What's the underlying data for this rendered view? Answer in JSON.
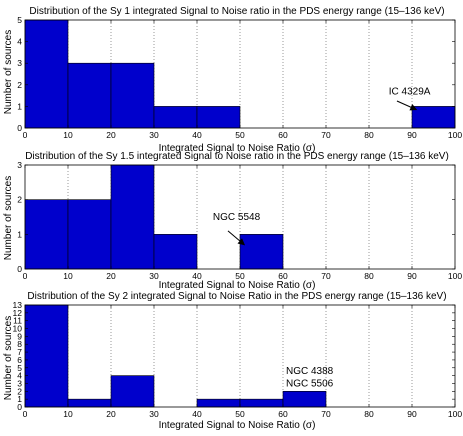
{
  "chart_data": [
    {
      "type": "bar",
      "title": "Distribution of the Sy 1 integrated Signal to Noise ratio in the PDS energy range (15–136 keV)",
      "xlabel": "Integrated Signal to Noise Ratio (σ)",
      "ylabel": "Number of sources",
      "xlim": [
        0,
        100
      ],
      "ylim": [
        0,
        5
      ],
      "xticks": [
        0,
        10,
        20,
        30,
        40,
        50,
        60,
        70,
        80,
        90,
        100
      ],
      "yticks": [
        0,
        1,
        2,
        3,
        4,
        5
      ],
      "grid": "vertical-dotted",
      "bins": [
        [
          0,
          10
        ],
        [
          10,
          20
        ],
        [
          20,
          30
        ],
        [
          30,
          40
        ],
        [
          40,
          50
        ],
        [
          50,
          60
        ],
        [
          60,
          70
        ],
        [
          70,
          80
        ],
        [
          80,
          90
        ],
        [
          90,
          100
        ]
      ],
      "values": [
        5,
        3,
        3,
        1,
        1,
        0,
        0,
        0,
        0,
        1
      ],
      "annotations": [
        {
          "text": "IC 4329A",
          "text_x": 84.6,
          "text_y": 1.55,
          "arrow_from": [
            86.5,
            1.25
          ],
          "arrow_to": [
            91,
            0.85
          ]
        }
      ]
    },
    {
      "type": "bar",
      "title": "Distribution of the Sy 1.5 integrated Signal to Noise ratio in the PDS energy range (15–136 keV)",
      "xlabel": "Integrated Signal to Noise Ratio (σ)",
      "ylabel": "Number of sources",
      "xlim": [
        0,
        100
      ],
      "ylim": [
        0,
        3
      ],
      "xticks": [
        0,
        10,
        20,
        30,
        40,
        50,
        60,
        70,
        80,
        90,
        100
      ],
      "yticks": [
        0,
        1,
        2,
        3
      ],
      "grid": "vertical-dotted",
      "bins": [
        [
          0,
          10
        ],
        [
          10,
          20
        ],
        [
          20,
          30
        ],
        [
          30,
          40
        ],
        [
          40,
          50
        ],
        [
          50,
          60
        ],
        [
          60,
          70
        ],
        [
          70,
          80
        ],
        [
          80,
          90
        ],
        [
          90,
          100
        ]
      ],
      "values": [
        2,
        2,
        3,
        1,
        0,
        1,
        0,
        0,
        0,
        0
      ],
      "annotations": [
        {
          "text": "NGC 5548",
          "text_x": 43.7,
          "text_y": 1.42,
          "arrow_from": [
            47.2,
            1.1
          ],
          "arrow_to": [
            51,
            0.7
          ]
        }
      ]
    },
    {
      "type": "bar",
      "title": "Distribution of the Sy 2 integrated Signal to Noise Ratio in the PDS energy range (15–136 keV)",
      "xlabel": "Integrated Signal to Noise Ratio (σ)",
      "ylabel": "Number of sources",
      "xlim": [
        0,
        100
      ],
      "ylim": [
        0,
        13
      ],
      "xticks": [
        0,
        10,
        20,
        30,
        40,
        50,
        60,
        70,
        80,
        90,
        100
      ],
      "yticks": [
        0,
        1,
        2,
        3,
        4,
        5,
        6,
        7,
        8,
        9,
        10,
        11,
        12,
        13
      ],
      "grid": "vertical-dotted",
      "bins": [
        [
          0,
          10
        ],
        [
          10,
          20
        ],
        [
          20,
          30
        ],
        [
          30,
          40
        ],
        [
          40,
          50
        ],
        [
          50,
          60
        ],
        [
          60,
          70
        ],
        [
          70,
          80
        ],
        [
          80,
          90
        ],
        [
          90,
          100
        ]
      ],
      "values": [
        13,
        1,
        4,
        0,
        1,
        1,
        2,
        0,
        0,
        0
      ],
      "annotations": [
        {
          "text": "NGC 4388",
          "text_x": 60.7,
          "text_y": 4.2
        },
        {
          "text": "NGC 5506",
          "text_x": 60.7,
          "text_y": 2.6
        }
      ]
    }
  ],
  "colors": {
    "bar_fill": "#0000cc",
    "bar_edge": "#000000",
    "grid": "#555555"
  }
}
